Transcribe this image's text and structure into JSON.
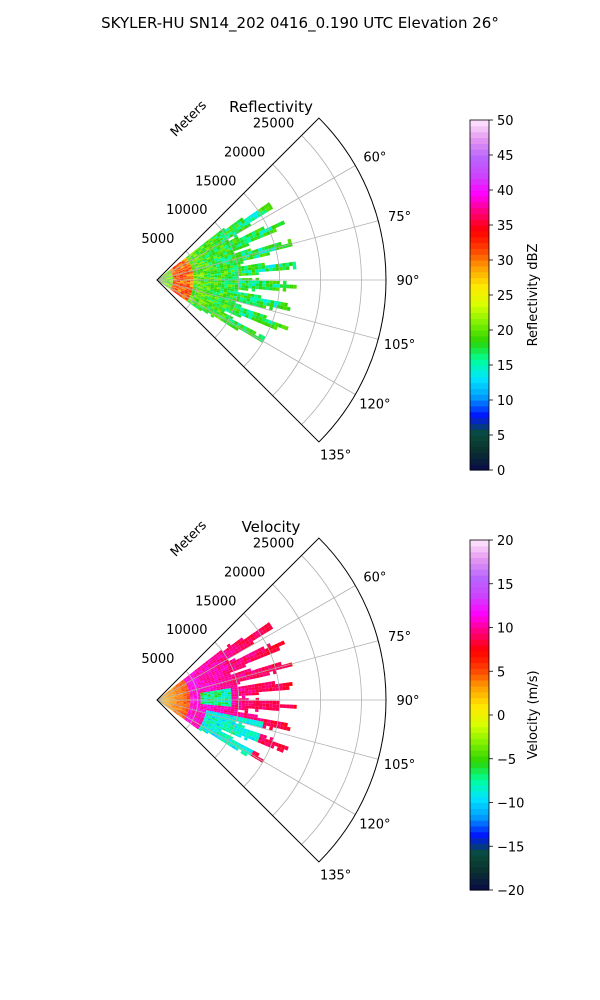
{
  "figure": {
    "suptitle": "SKYLER-HU  SN14_202  0416_0.190 UTC Elevation 26°"
  },
  "chart_data": [
    {
      "type": "heatmap",
      "subtype": "polar-sector radar PPI",
      "title": "Reflectivity",
      "radial_label": "Meters",
      "theta_range_deg": [
        45,
        135
      ],
      "theta_ticks": [
        "60°",
        "75°",
        "90°",
        "105°",
        "120°",
        "135°"
      ],
      "theta_tick_values": [
        60,
        75,
        90,
        105,
        120,
        135
      ],
      "r_max": 28000,
      "r_ticks": [
        "5000",
        "10000",
        "15000",
        "20000",
        "25000"
      ],
      "r_tick_values": [
        5000,
        10000,
        15000,
        20000,
        25000
      ],
      "data_extent": {
        "theta_deg": [
          52,
          125
        ],
        "r_max_m": 17000
      },
      "colorbar": {
        "label": "Reflectivity dBZ",
        "min": 0,
        "max": 50,
        "ticks": [
          "0",
          "5",
          "10",
          "15",
          "20",
          "25",
          "30",
          "35",
          "40",
          "45",
          "50"
        ],
        "tick_values": [
          0,
          5,
          10,
          15,
          20,
          25,
          30,
          35,
          40,
          45,
          50
        ]
      },
      "grid": true
    },
    {
      "type": "heatmap",
      "subtype": "polar-sector radar PPI",
      "title": "Velocity",
      "radial_label": "Meters",
      "theta_range_deg": [
        45,
        135
      ],
      "theta_ticks": [
        "60°",
        "75°",
        "90°",
        "105°",
        "120°",
        "135°"
      ],
      "theta_tick_values": [
        60,
        75,
        90,
        105,
        120,
        135
      ],
      "r_max": 28000,
      "r_ticks": [
        "5000",
        "10000",
        "15000",
        "20000",
        "25000"
      ],
      "r_tick_values": [
        5000,
        10000,
        15000,
        20000,
        25000
      ],
      "data_extent": {
        "theta_deg": [
          52,
          125
        ],
        "r_max_m": 17000
      },
      "colorbar": {
        "label": "Velocity (m/s)",
        "min": -20,
        "max": 20,
        "ticks": [
          "−20",
          "−15",
          "−10",
          "−5",
          "0",
          "5",
          "10",
          "15",
          "20"
        ],
        "tick_values": [
          -20,
          -15,
          -10,
          -5,
          0,
          5,
          10,
          15,
          20
        ]
      },
      "grid": true
    }
  ],
  "colormap_stops": [
    "#0a0a4a",
    "#0a2f2f",
    "#0a4d3a",
    "#0018ff",
    "#00a0ff",
    "#00e5ff",
    "#00ff9a",
    "#2cd400",
    "#7ff000",
    "#d8ff00",
    "#ffe600",
    "#ffa000",
    "#ff4000",
    "#ff0000",
    "#ff0077",
    "#ff00ff",
    "#cc44ff",
    "#b866ff",
    "#e599ee",
    "#ffe8ff"
  ]
}
